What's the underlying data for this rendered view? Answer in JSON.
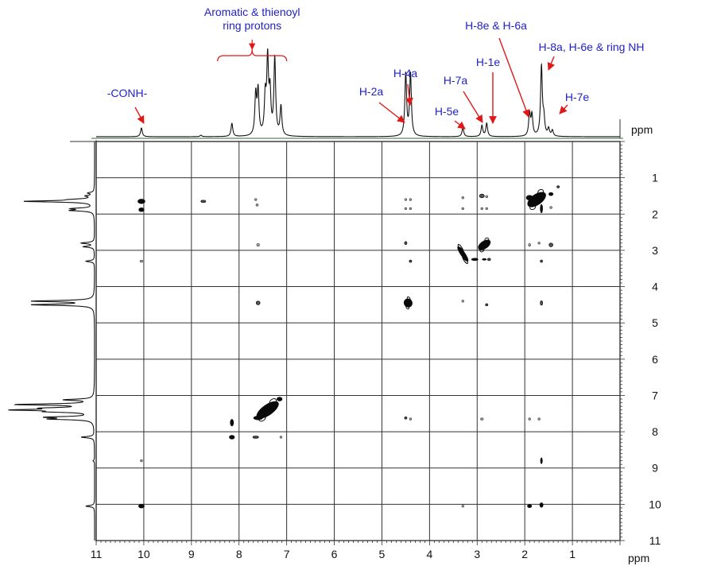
{
  "chart_data": {
    "type": "heatmap",
    "title": "",
    "x_unit": "ppm",
    "y_unit": "ppm",
    "x_ticks": [
      11,
      10,
      9,
      8,
      7,
      6,
      5,
      4,
      3,
      2,
      1
    ],
    "y_ticks": [
      1,
      2,
      3,
      4,
      5,
      6,
      7,
      8,
      9,
      10,
      11
    ],
    "x_range": [
      11,
      0
    ],
    "y_range": [
      0,
      11
    ],
    "grid": true,
    "annotations": [
      {
        "label": "-CONH-",
        "peak_ppm": 10.05
      },
      {
        "label": "Aromatic & thienoyl",
        "label2": "ring protons",
        "range_ppm": [
          8.45,
          7.0
        ]
      },
      {
        "label": "H-2a",
        "peak_ppm": 4.5
      },
      {
        "label": "H-4a",
        "peak_ppm": 4.4
      },
      {
        "label": "H-5e",
        "peak_ppm": 3.3
      },
      {
        "label": "H-7a",
        "peak_ppm": 2.9
      },
      {
        "label": "H-1e",
        "peak_ppm": 2.8
      },
      {
        "label": "H-8e & H-6a",
        "peak_ppm": 1.9
      },
      {
        "label": "H-8a, H-6e & ring NH",
        "peak_ppm": 1.65
      },
      {
        "label": "H-7e",
        "peak_ppm": 1.45
      }
    ],
    "projection_peaks": [
      {
        "ppm": 10.05,
        "intensity": 0.12
      },
      {
        "ppm": 8.8,
        "intensity": 0.02
      },
      {
        "ppm": 8.15,
        "intensity": 0.18
      },
      {
        "ppm": 7.65,
        "intensity": 0.55
      },
      {
        "ppm": 7.6,
        "intensity": 0.6
      },
      {
        "ppm": 7.45,
        "intensity": 0.5
      },
      {
        "ppm": 7.4,
        "intensity": 1.0
      },
      {
        "ppm": 7.35,
        "intensity": 0.55
      },
      {
        "ppm": 7.25,
        "intensity": 1.05
      },
      {
        "ppm": 7.12,
        "intensity": 0.4
      },
      {
        "ppm": 4.5,
        "intensity": 0.85
      },
      {
        "ppm": 4.4,
        "intensity": 0.85
      },
      {
        "ppm": 3.3,
        "intensity": 0.12
      },
      {
        "ppm": 2.9,
        "intensity": 0.15
      },
      {
        "ppm": 2.8,
        "intensity": 0.18
      },
      {
        "ppm": 1.9,
        "intensity": 0.3
      },
      {
        "ppm": 1.85,
        "intensity": 0.28
      },
      {
        "ppm": 1.65,
        "intensity": 0.95
      },
      {
        "ppm": 1.6,
        "intensity": 0.22
      },
      {
        "ppm": 1.5,
        "intensity": 0.1
      },
      {
        "ppm": 1.42,
        "intensity": 0.08
      }
    ],
    "cross_peaks": [
      {
        "x": 10.05,
        "y": 1.65,
        "w": 0.16,
        "h": 0.14,
        "level": "strong"
      },
      {
        "x": 10.05,
        "y": 1.88,
        "w": 0.12,
        "h": 0.12,
        "level": "strong"
      },
      {
        "x": 10.05,
        "y": 3.3,
        "w": 0.06,
        "h": 0.06,
        "level": "weak"
      },
      {
        "x": 10.05,
        "y": 8.8,
        "w": 0.04,
        "h": 0.05,
        "level": "weak"
      },
      {
        "x": 10.05,
        "y": 10.05,
        "w": 0.13,
        "h": 0.12,
        "level": "strong"
      },
      {
        "x": 8.75,
        "y": 1.65,
        "w": 0.1,
        "h": 0.05,
        "level": "medium"
      },
      {
        "x": 7.65,
        "y": 1.6,
        "w": 0.04,
        "h": 0.04,
        "level": "weak"
      },
      {
        "x": 7.62,
        "y": 1.75,
        "w": 0.05,
        "h": 0.04,
        "level": "weak"
      },
      {
        "x": 7.6,
        "y": 2.85,
        "w": 0.06,
        "h": 0.08,
        "level": "weak"
      },
      {
        "x": 7.6,
        "y": 4.45,
        "w": 0.08,
        "h": 0.1,
        "level": "medium"
      },
      {
        "x": 7.4,
        "y": 7.4,
        "w": 0.55,
        "h": 0.3,
        "level": "strong",
        "diagonal": true
      },
      {
        "x": 7.6,
        "y": 7.62,
        "w": 0.2,
        "h": 0.12,
        "level": "strong"
      },
      {
        "x": 7.15,
        "y": 7.1,
        "w": 0.12,
        "h": 0.12,
        "level": "strong"
      },
      {
        "x": 8.15,
        "y": 7.75,
        "w": 0.08,
        "h": 0.2,
        "level": "strong"
      },
      {
        "x": 8.15,
        "y": 8.15,
        "w": 0.12,
        "h": 0.12,
        "level": "strong"
      },
      {
        "x": 7.65,
        "y": 8.15,
        "w": 0.12,
        "h": 0.05,
        "level": "medium"
      },
      {
        "x": 7.12,
        "y": 8.15,
        "w": 0.04,
        "h": 0.04,
        "level": "weak"
      },
      {
        "x": 4.5,
        "y": 1.6,
        "w": 0.04,
        "h": 0.05,
        "level": "weak"
      },
      {
        "x": 4.4,
        "y": 1.6,
        "w": 0.04,
        "h": 0.05,
        "level": "weak"
      },
      {
        "x": 4.5,
        "y": 1.85,
        "w": 0.03,
        "h": 0.04,
        "level": "weak"
      },
      {
        "x": 4.4,
        "y": 1.85,
        "w": 0.03,
        "h": 0.04,
        "level": "weak"
      },
      {
        "x": 4.5,
        "y": 2.8,
        "w": 0.05,
        "h": 0.08,
        "level": "medium"
      },
      {
        "x": 4.4,
        "y": 3.3,
        "w": 0.05,
        "h": 0.06,
        "level": "medium"
      },
      {
        "x": 4.45,
        "y": 4.45,
        "w": 0.18,
        "h": 0.25,
        "level": "strong",
        "diagonal": true
      },
      {
        "x": 4.5,
        "y": 7.62,
        "w": 0.05,
        "h": 0.06,
        "level": "medium"
      },
      {
        "x": 4.4,
        "y": 7.65,
        "w": 0.04,
        "h": 0.05,
        "level": "weak"
      },
      {
        "x": 3.3,
        "y": 1.55,
        "w": 0.04,
        "h": 0.04,
        "level": "weak"
      },
      {
        "x": 3.3,
        "y": 1.85,
        "w": 0.03,
        "h": 0.03,
        "level": "weak"
      },
      {
        "x": 3.3,
        "y": 3.1,
        "w": 0.1,
        "h": 0.5,
        "level": "strong",
        "diagonal": true
      },
      {
        "x": 3.05,
        "y": 3.25,
        "w": 0.15,
        "h": 0.08,
        "level": "strong"
      },
      {
        "x": 3.3,
        "y": 4.4,
        "w": 0.04,
        "h": 0.04,
        "level": "weak"
      },
      {
        "x": 3.3,
        "y": 10.05,
        "w": 0.03,
        "h": 0.03,
        "level": "weak"
      },
      {
        "x": 2.9,
        "y": 1.5,
        "w": 0.1,
        "h": 0.1,
        "level": "medium"
      },
      {
        "x": 2.8,
        "y": 1.52,
        "w": 0.05,
        "h": 0.05,
        "level": "weak"
      },
      {
        "x": 2.9,
        "y": 1.85,
        "w": 0.04,
        "h": 0.04,
        "level": "weak"
      },
      {
        "x": 2.8,
        "y": 1.85,
        "w": 0.04,
        "h": 0.04,
        "level": "weak"
      },
      {
        "x": 2.85,
        "y": 2.85,
        "w": 0.3,
        "h": 0.22,
        "level": "strong",
        "diagonal": true
      },
      {
        "x": 2.85,
        "y": 3.25,
        "w": 0.1,
        "h": 0.06,
        "level": "strong"
      },
      {
        "x": 2.75,
        "y": 3.25,
        "w": 0.06,
        "h": 0.06,
        "level": "medium"
      },
      {
        "x": 2.8,
        "y": 4.5,
        "w": 0.05,
        "h": 0.06,
        "level": "medium"
      },
      {
        "x": 2.9,
        "y": 7.65,
        "w": 0.06,
        "h": 0.04,
        "level": "weak"
      },
      {
        "x": 1.75,
        "y": 1.6,
        "w": 0.45,
        "h": 0.3,
        "level": "strong",
        "diagonal": true
      },
      {
        "x": 1.9,
        "y": 1.55,
        "w": 0.15,
        "h": 0.15,
        "level": "strong"
      },
      {
        "x": 1.65,
        "y": 1.85,
        "w": 0.06,
        "h": 0.25,
        "level": "strong"
      },
      {
        "x": 1.45,
        "y": 1.45,
        "w": 0.1,
        "h": 0.1,
        "level": "strong"
      },
      {
        "x": 1.3,
        "y": 1.25,
        "w": 0.05,
        "h": 0.05,
        "level": "medium"
      },
      {
        "x": 1.45,
        "y": 1.82,
        "w": 0.05,
        "h": 0.04,
        "level": "weak"
      },
      {
        "x": 1.9,
        "y": 2.85,
        "w": 0.04,
        "h": 0.08,
        "level": "weak"
      },
      {
        "x": 1.7,
        "y": 2.8,
        "w": 0.03,
        "h": 0.04,
        "level": "weak"
      },
      {
        "x": 1.45,
        "y": 2.85,
        "w": 0.08,
        "h": 0.1,
        "level": "medium"
      },
      {
        "x": 1.65,
        "y": 3.3,
        "w": 0.04,
        "h": 0.05,
        "level": "medium"
      },
      {
        "x": 1.65,
        "y": 4.45,
        "w": 0.04,
        "h": 0.12,
        "level": "medium"
      },
      {
        "x": 1.9,
        "y": 7.65,
        "w": 0.04,
        "h": 0.04,
        "level": "weak"
      },
      {
        "x": 1.7,
        "y": 7.65,
        "w": 0.03,
        "h": 0.03,
        "level": "weak"
      },
      {
        "x": 1.65,
        "y": 8.8,
        "w": 0.05,
        "h": 0.18,
        "level": "strong"
      },
      {
        "x": 1.9,
        "y": 10.05,
        "w": 0.1,
        "h": 0.1,
        "level": "strong"
      },
      {
        "x": 1.65,
        "y": 10.02,
        "w": 0.08,
        "h": 0.14,
        "level": "strong"
      }
    ]
  }
}
